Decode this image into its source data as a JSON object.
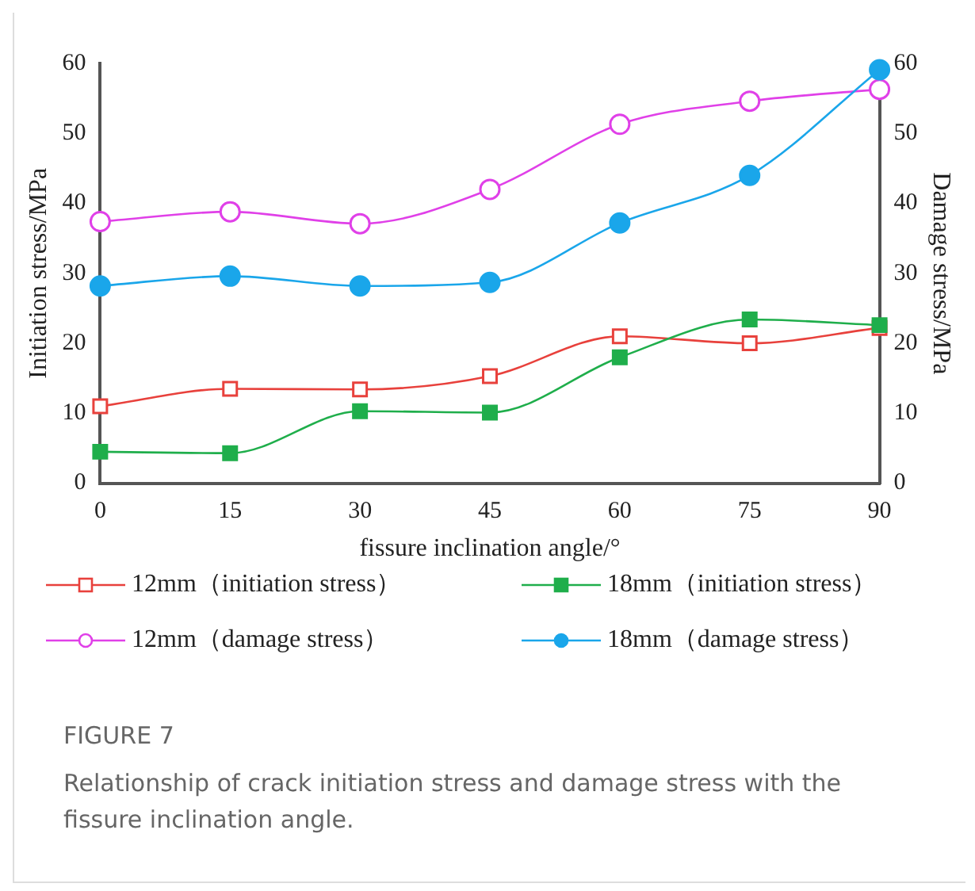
{
  "chart_data": {
    "type": "line",
    "title": "FIGURE 7",
    "subtitle": "Relationship of crack initiation stress and damage stress with the fissure inclination angle.",
    "xlabel": "fissure inclination angle/°",
    "ylabel": "Initiation stress/MPa",
    "y2label": "Damage stress/MPa",
    "x": [
      0,
      15,
      30,
      45,
      60,
      75,
      90
    ],
    "xlim": [
      0,
      90
    ],
    "xticks": [
      0,
      15,
      30,
      45,
      60,
      75,
      90
    ],
    "ylim": [
      0,
      60
    ],
    "yticks": [
      0,
      10,
      20,
      30,
      40,
      50,
      60
    ],
    "y2lim": [
      0,
      60
    ],
    "y2ticks": [
      0,
      10,
      20,
      30,
      40,
      50,
      60
    ],
    "series": [
      {
        "name": "12mm（initiation stress）",
        "color": "#e8413c",
        "marker": "square",
        "values": [
          11,
          13.5,
          13.4,
          15.3,
          21,
          20,
          22.2
        ]
      },
      {
        "name": "18mm（initiation stress）",
        "color": "#1fae4b",
        "marker": "square",
        "values": [
          4.5,
          4.3,
          10.3,
          10.1,
          18,
          23.4,
          22.6
        ]
      },
      {
        "name": "12mm（damage stress）",
        "color": "#e040e8",
        "marker": "circle",
        "axis": "y2",
        "values": [
          37.4,
          38.8,
          37.1,
          42,
          51.3,
          54.6,
          56.3
        ]
      },
      {
        "name": "18mm（damage stress）",
        "color": "#1aa6ea",
        "marker": "circle",
        "axis": "y2",
        "values": [
          28.2,
          29.6,
          28.2,
          28.7,
          37.2,
          44,
          59.1
        ]
      }
    ],
    "grid": false,
    "legend": "bottom"
  }
}
